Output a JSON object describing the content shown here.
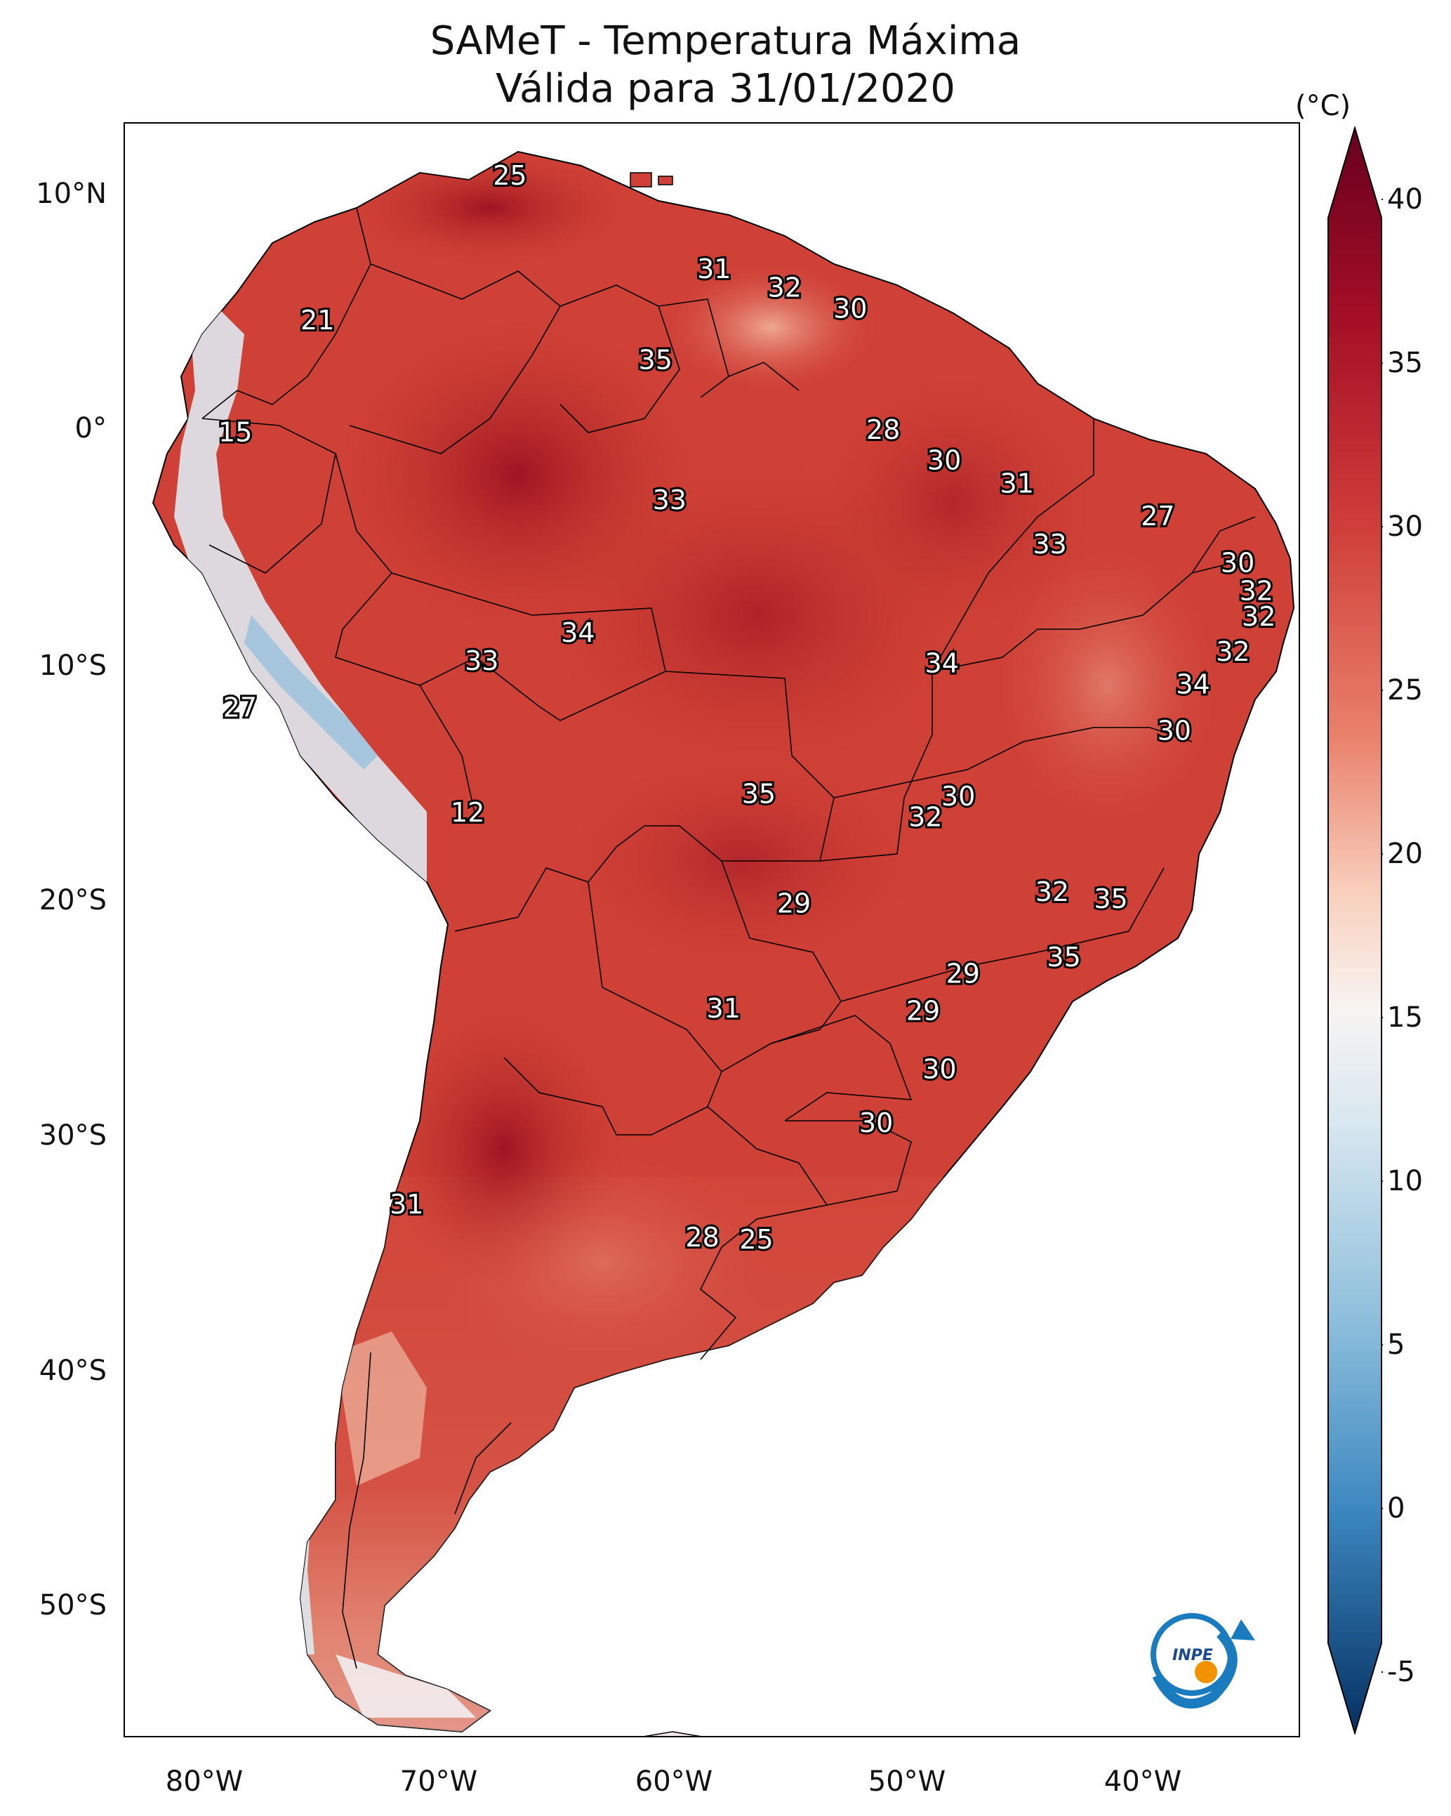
{
  "title": {
    "line1": "SAMeT - Temperatura Máxima",
    "line2": "Válida para 31/01/2020"
  },
  "colorbar": {
    "unit": "(°C)",
    "ticks": [
      "40",
      "35",
      "30",
      "25",
      "20",
      "15",
      "10",
      "5",
      "0",
      "-5"
    ],
    "range": [
      -7,
      42
    ]
  },
  "axes": {
    "lat_ticks": [
      "10°N",
      "0°",
      "10°S",
      "20°S",
      "30°S",
      "40°S",
      "50°S"
    ],
    "lon_ticks": [
      "80°W",
      "70°W",
      "60°W",
      "50°W",
      "40°W"
    ]
  },
  "temperature_labels": [
    {
      "text": "25",
      "lon": -66.5,
      "lat": 10.7
    },
    {
      "text": "21",
      "lon": -74.7,
      "lat": 4.5
    },
    {
      "text": "31",
      "lon": -57.8,
      "lat": 6.7
    },
    {
      "text": "32",
      "lon": -54.8,
      "lat": 5.9
    },
    {
      "text": "30",
      "lon": -52.0,
      "lat": 5.0
    },
    {
      "text": "35",
      "lon": -60.3,
      "lat": 2.8
    },
    {
      "text": "15",
      "lon": -78.2,
      "lat": -0.3
    },
    {
      "text": "28",
      "lon": -50.6,
      "lat": -0.2
    },
    {
      "text": "30",
      "lon": -48.0,
      "lat": -1.5
    },
    {
      "text": "31",
      "lon": -44.9,
      "lat": -2.5
    },
    {
      "text": "33",
      "lon": -59.7,
      "lat": -3.2
    },
    {
      "text": "27",
      "lon": -38.9,
      "lat": -3.9
    },
    {
      "text": "33",
      "lon": -43.5,
      "lat": -5.1
    },
    {
      "text": "30",
      "lon": -35.5,
      "lat": -5.9
    },
    {
      "text": "32",
      "lon": -34.7,
      "lat": -7.1
    },
    {
      "text": "32",
      "lon": -34.6,
      "lat": -8.2
    },
    {
      "text": "34",
      "lon": -63.6,
      "lat": -8.9
    },
    {
      "text": "33",
      "lon": -67.7,
      "lat": -10.1
    },
    {
      "text": "34",
      "lon": -48.1,
      "lat": -10.2
    },
    {
      "text": "32",
      "lon": -35.7,
      "lat": -9.7
    },
    {
      "text": "34",
      "lon": -37.4,
      "lat": -11.1
    },
    {
      "text": "27",
      "lon": -78.0,
      "lat": -12.1
    },
    {
      "text": "30",
      "lon": -38.2,
      "lat": -13.1
    },
    {
      "text": "35",
      "lon": -55.9,
      "lat": -15.8
    },
    {
      "text": "30",
      "lon": -47.4,
      "lat": -15.9
    },
    {
      "text": "12",
      "lon": -68.3,
      "lat": -16.6
    },
    {
      "text": "32",
      "lon": -48.8,
      "lat": -16.8
    },
    {
      "text": "32",
      "lon": -43.4,
      "lat": -20.0
    },
    {
      "text": "35",
      "lon": -40.9,
      "lat": -20.3
    },
    {
      "text": "29",
      "lon": -54.4,
      "lat": -20.5
    },
    {
      "text": "35",
      "lon": -42.9,
      "lat": -22.8
    },
    {
      "text": "29",
      "lon": -47.2,
      "lat": -23.5
    },
    {
      "text": "31",
      "lon": -57.4,
      "lat": -25.0
    },
    {
      "text": "29",
      "lon": -48.9,
      "lat": -25.1
    },
    {
      "text": "30",
      "lon": -48.2,
      "lat": -27.6
    },
    {
      "text": "30",
      "lon": -50.9,
      "lat": -29.9
    },
    {
      "text": "31",
      "lon": -70.9,
      "lat": -33.4
    },
    {
      "text": "28",
      "lon": -58.3,
      "lat": -34.8
    },
    {
      "text": "25",
      "lon": -56.0,
      "lat": -34.9
    }
  ],
  "logo": {
    "text": "INPE"
  }
}
